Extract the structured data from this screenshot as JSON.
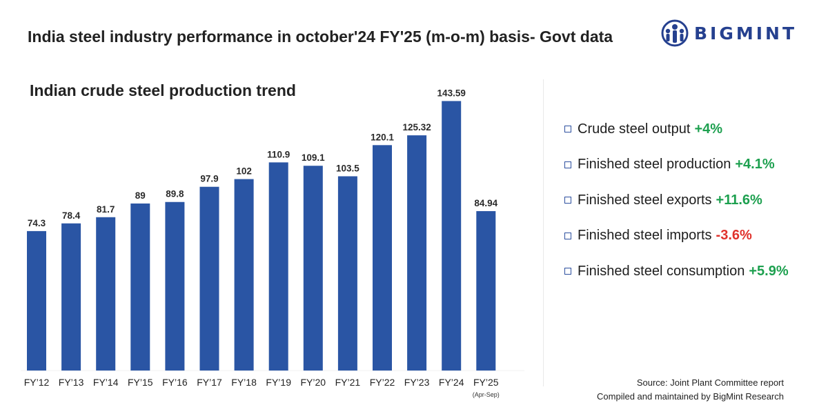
{
  "header": {
    "title": "India steel industry performance in october'24  FY'25 (m-o-m) basis- Govt data",
    "brand_name": "BIGMINT"
  },
  "chart_data": {
    "type": "bar",
    "title": "Indian crude steel production trend",
    "categories": [
      "FY’12",
      "FY’13",
      "FY’14",
      "FY’15",
      "FY’16",
      "FY’17",
      "FY’18",
      "FY’19",
      "FY’20",
      "FY’21",
      "FY’22",
      "FY’23",
      "FY’24",
      "FY’25"
    ],
    "category_notes": [
      "",
      "",
      "",
      "",
      "",
      "",
      "",
      "",
      "",
      "",
      "",
      "",
      "",
      "(Apr-Sep)"
    ],
    "values": [
      74.3,
      78.4,
      81.7,
      89,
      89.8,
      97.9,
      102,
      110.9,
      109.1,
      103.5,
      120.1,
      125.32,
      143.59,
      84.94
    ],
    "labels": [
      "74.3",
      "78.4",
      "81.7",
      "89",
      "89.8",
      "97.9",
      "102",
      "110.9",
      "109.1",
      "103.5",
      "120.1",
      "125.32",
      "143.59",
      "84.94"
    ],
    "xlabel": "",
    "ylabel": "",
    "bar_color": "#2a55a4",
    "grid": false,
    "legend": "none"
  },
  "metrics": [
    {
      "label": "Crude steel output",
      "value": "+4%",
      "color": "#1da04f"
    },
    {
      "label": "Finished steel production",
      "value": "+4.1%",
      "color": "#1da04f"
    },
    {
      "label": "Finished steel exports",
      "value": "+11.6%",
      "color": "#1da04f"
    },
    {
      "label": "Finished steel imports",
      "value": "-3.6%",
      "color": "#e0312b"
    },
    {
      "label": "Finished steel consumption",
      "value": "+5.9%",
      "color": "#1da04f"
    }
  ],
  "footer": {
    "source": "Source: Joint Plant Committee report",
    "compiled": "Compiled and maintained by BigMint Research"
  }
}
